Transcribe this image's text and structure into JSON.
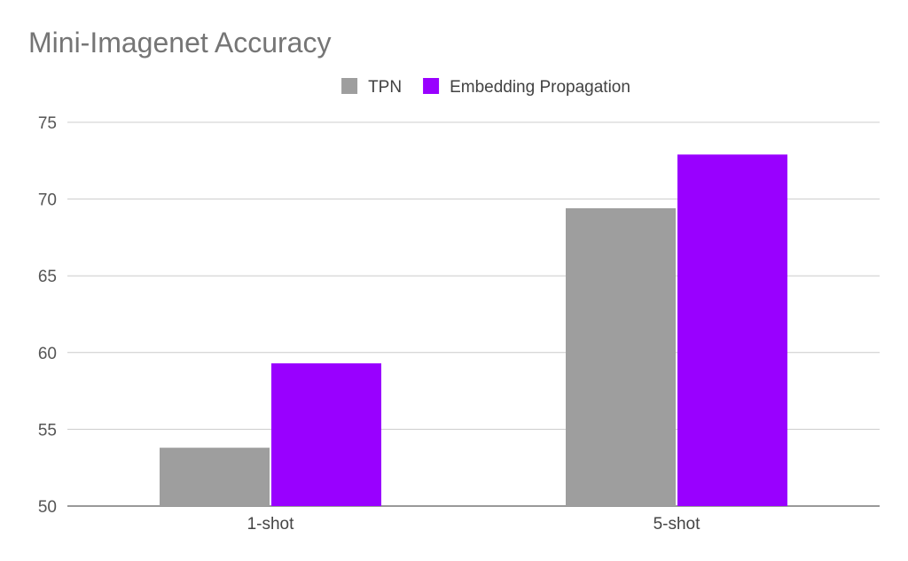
{
  "chart_data": {
    "type": "bar",
    "title": "Mini-Imagenet Accuracy",
    "xlabel": "",
    "ylabel": "",
    "categories": [
      "1-shot",
      "5-shot"
    ],
    "series": [
      {
        "name": "TPN",
        "color": "#9e9e9e",
        "values": [
          53.8,
          69.4
        ]
      },
      {
        "name": "Embedding Propagation",
        "color": "#9900ff",
        "values": [
          59.3,
          72.9
        ]
      }
    ],
    "ylim": [
      50,
      75
    ],
    "yticks": [
      50,
      55,
      60,
      65,
      70,
      75
    ],
    "grid": true,
    "legend_position": "top-center"
  }
}
